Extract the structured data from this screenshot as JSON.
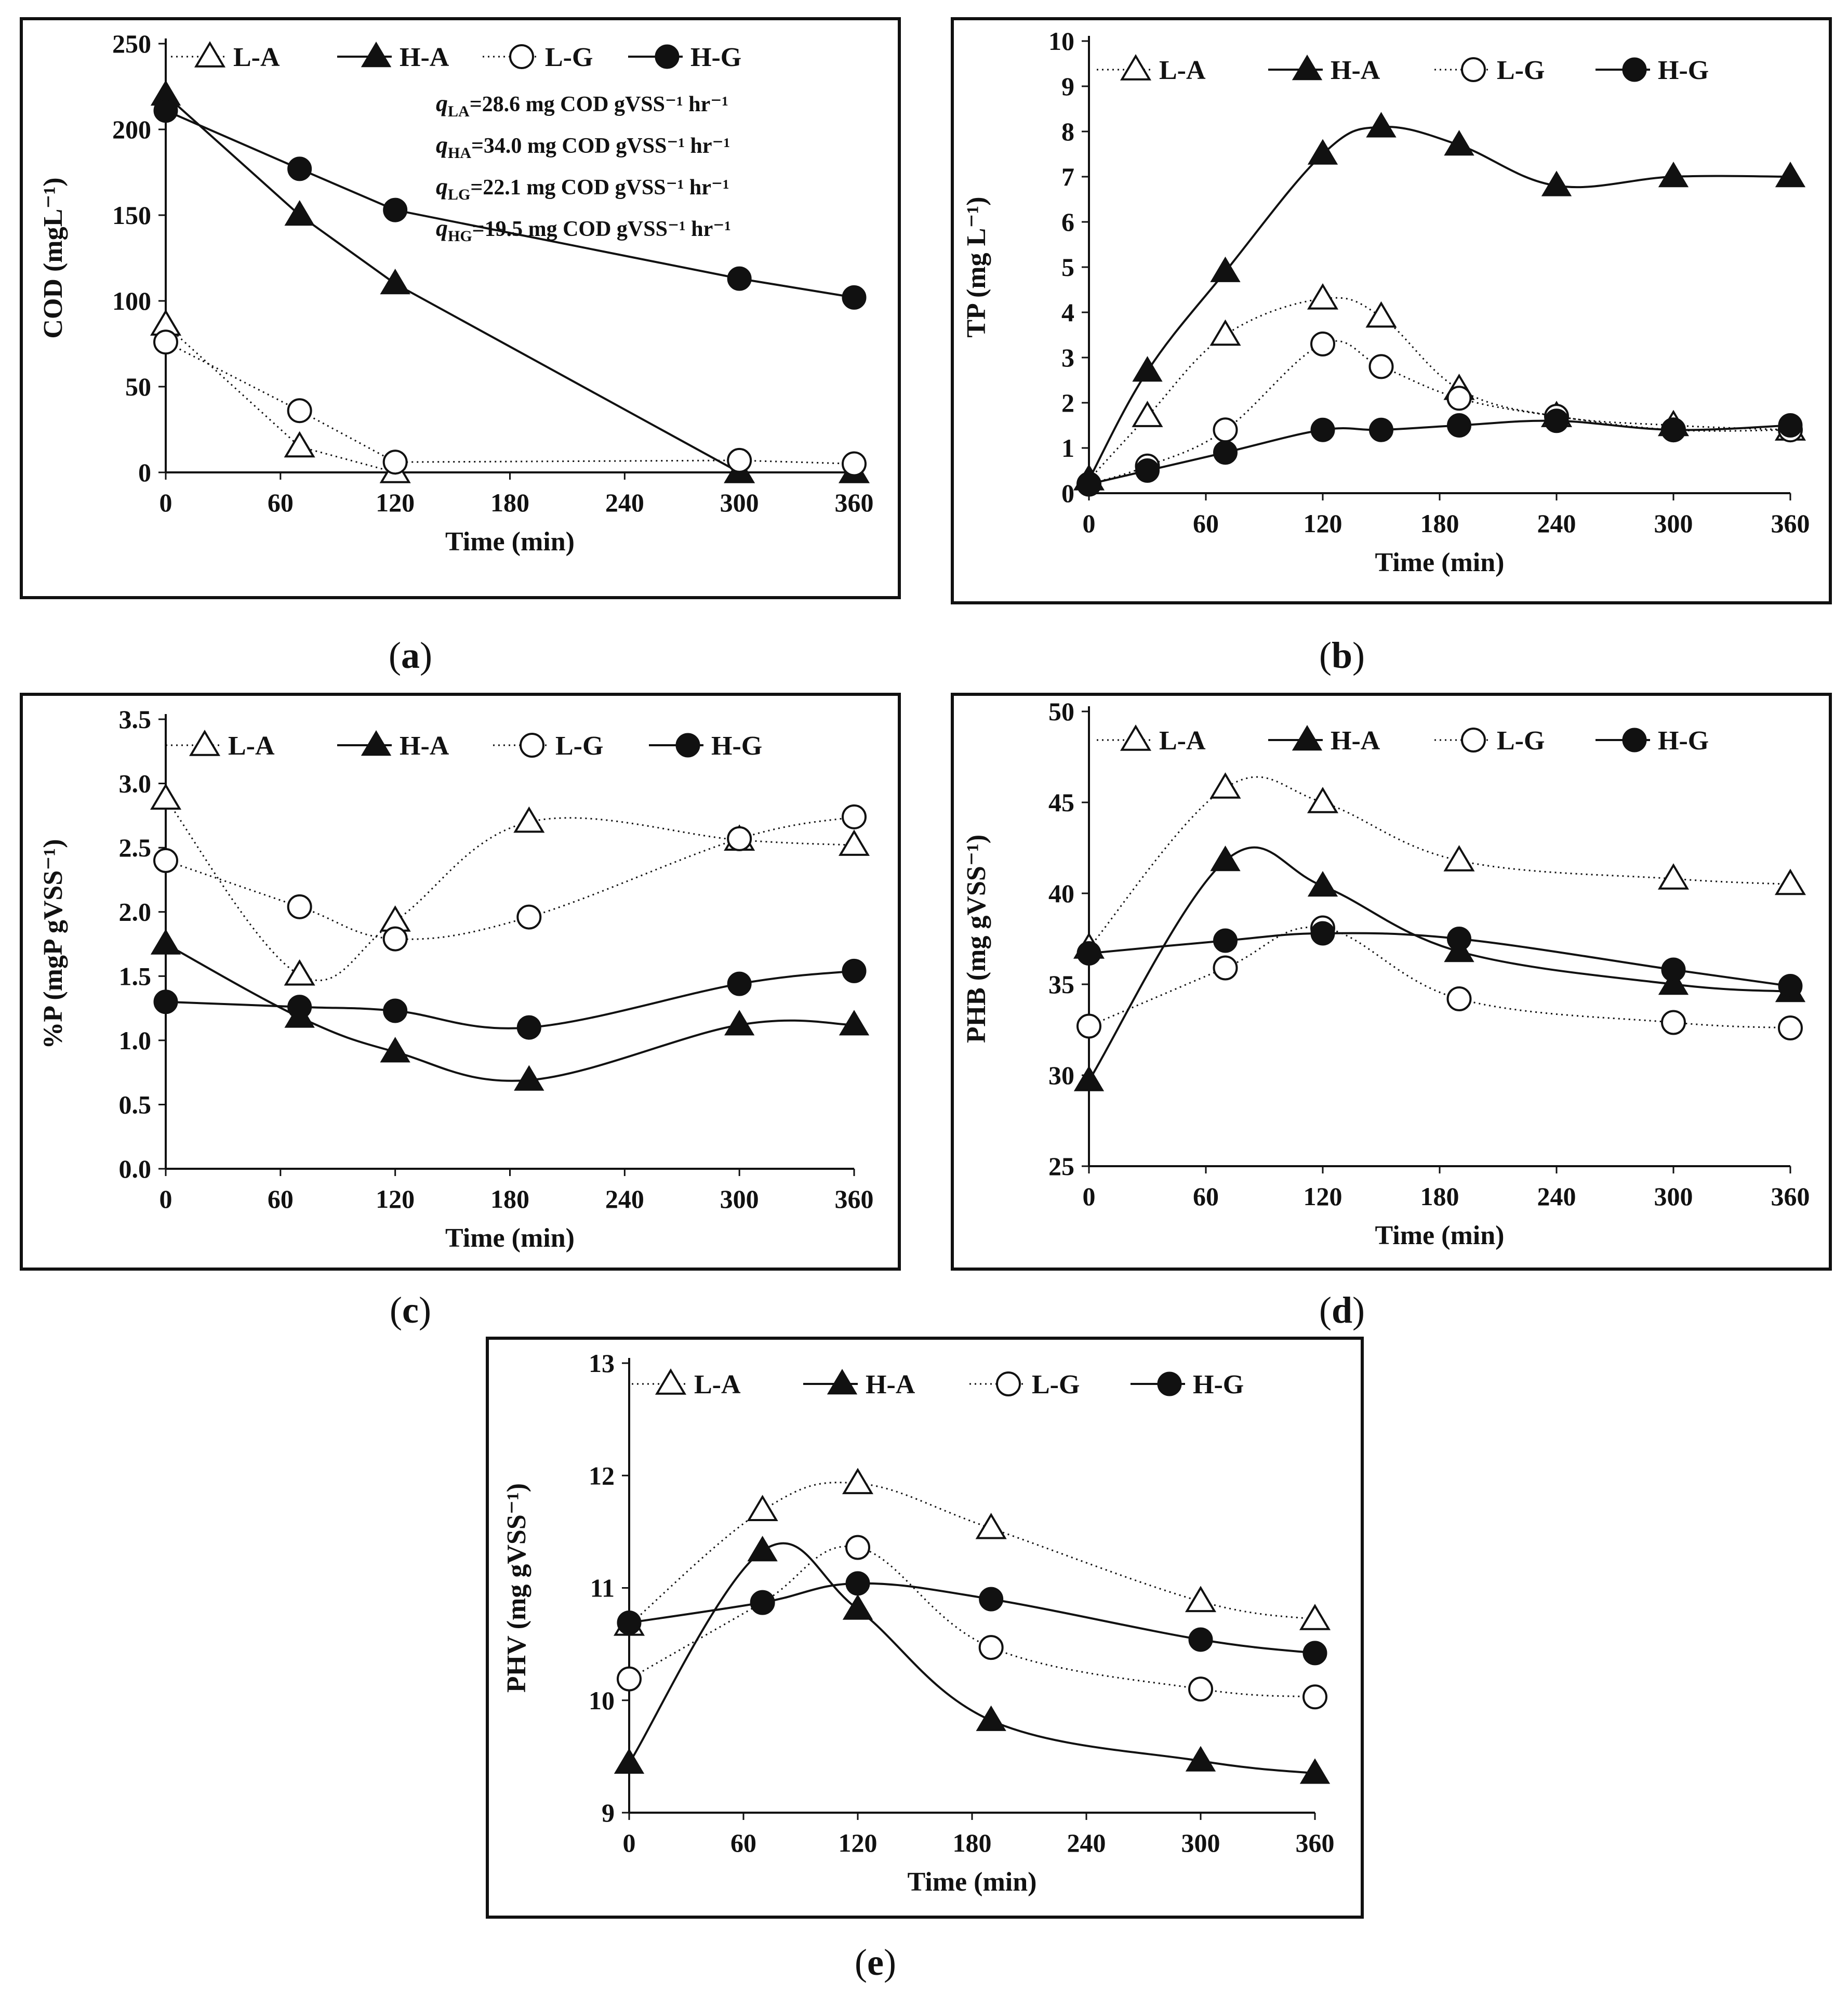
{
  "figure": {
    "captions": [
      "a",
      "b",
      "c",
      "d",
      "e"
    ]
  },
  "chart_data": [
    {
      "id": "a",
      "type": "line",
      "xlabel": "Time (min)",
      "ylabel": "COD (mgL⁻¹)",
      "ylim": [
        0,
        250
      ],
      "yticks": [
        "0",
        "50",
        "100",
        "150",
        "200",
        "250"
      ],
      "xticks": [
        "0",
        "60",
        "120",
        "180",
        "240",
        "300",
        "360"
      ],
      "xlim": [
        0,
        360
      ],
      "series": [
        {
          "name": "L-A",
          "marker": "triangle-open",
          "line": "dotted",
          "x": [
            0,
            70,
            120,
            300,
            360
          ],
          "y": [
            86,
            15,
            0,
            0,
            0
          ]
        },
        {
          "name": "H-A",
          "marker": "triangle-filled",
          "line": "solid",
          "x": [
            0,
            70,
            120,
            300,
            360
          ],
          "y": [
            220,
            150,
            110,
            0,
            0
          ]
        },
        {
          "name": "L-G",
          "marker": "circle-open",
          "line": "dotted",
          "x": [
            0,
            70,
            120,
            300,
            360
          ],
          "y": [
            76,
            36,
            6,
            7,
            5
          ]
        },
        {
          "name": "H-G",
          "marker": "circle-filled",
          "line": "solid",
          "x": [
            0,
            70,
            120,
            300,
            360
          ],
          "y": [
            211,
            177,
            153,
            113,
            102
          ]
        }
      ],
      "annotations": [
        {
          "q": "q",
          "sub": "LA",
          "text": "=28.6 mg COD gVSS⁻¹ hr⁻¹"
        },
        {
          "q": "q",
          "sub": "HA",
          "text": "=34.0 mg COD gVSS⁻¹ hr⁻¹"
        },
        {
          "q": "q",
          "sub": "LG",
          "text": "=22.1 mg COD gVSS⁻¹ hr⁻¹"
        },
        {
          "q": "q",
          "sub": "HG",
          "text": "=19.5 mg COD gVSS⁻¹ hr⁻¹"
        }
      ]
    },
    {
      "id": "b",
      "type": "line",
      "xlabel": "Time (min)",
      "ylabel": "TP (mg L⁻¹)",
      "ylim": [
        0,
        10
      ],
      "yticks": [
        "0",
        "1",
        "2",
        "3",
        "4",
        "5",
        "6",
        "7",
        "8",
        "9",
        "10"
      ],
      "xticks": [
        "0",
        "60",
        "120",
        "180",
        "240",
        "300",
        "360"
      ],
      "xlim": [
        0,
        360
      ],
      "series": [
        {
          "name": "L-A",
          "marker": "triangle-open",
          "line": "dotted",
          "x": [
            0,
            30,
            70,
            120,
            150,
            190,
            240,
            300,
            360
          ],
          "y": [
            0.3,
            1.7,
            3.5,
            4.3,
            3.9,
            2.3,
            1.7,
            1.5,
            1.4
          ]
        },
        {
          "name": "H-A",
          "marker": "triangle-filled",
          "line": "solid",
          "x": [
            0,
            30,
            70,
            120,
            150,
            190,
            240,
            300,
            360
          ],
          "y": [
            0.3,
            2.7,
            4.9,
            7.5,
            8.1,
            7.7,
            6.8,
            7.0,
            7.0
          ]
        },
        {
          "name": "L-G",
          "marker": "circle-open",
          "line": "dotted",
          "x": [
            0,
            30,
            70,
            120,
            150,
            190,
            240,
            300,
            360
          ],
          "y": [
            0.2,
            0.6,
            1.4,
            3.3,
            2.8,
            2.1,
            1.7,
            1.4,
            1.4
          ]
        },
        {
          "name": "H-G",
          "marker": "circle-filled",
          "line": "solid",
          "x": [
            0,
            30,
            70,
            120,
            150,
            190,
            240,
            300,
            360
          ],
          "y": [
            0.2,
            0.5,
            0.9,
            1.4,
            1.4,
            1.5,
            1.6,
            1.4,
            1.5
          ]
        }
      ]
    },
    {
      "id": "c",
      "type": "line",
      "xlabel": "Time (min)",
      "ylabel": "%P (mgP gVSS⁻¹)",
      "ylim": [
        0,
        3.5
      ],
      "yticks": [
        "0.0",
        "0.5",
        "1.0",
        "1.5",
        "2.0",
        "2.5",
        "3.0",
        "3.5"
      ],
      "xticks": [
        "0",
        "60",
        "120",
        "180",
        "240",
        "300",
        "360"
      ],
      "xlim": [
        0,
        360
      ],
      "series": [
        {
          "name": "L-A",
          "marker": "triangle-open",
          "line": "dotted",
          "x": [
            0,
            70,
            120,
            190,
            300,
            360
          ],
          "y": [
            2.88,
            1.51,
            1.93,
            2.7,
            2.56,
            2.52
          ]
        },
        {
          "name": "H-A",
          "marker": "triangle-filled",
          "line": "solid",
          "x": [
            0,
            70,
            120,
            190,
            300,
            360
          ],
          "y": [
            1.75,
            1.18,
            0.91,
            0.69,
            1.12,
            1.12
          ]
        },
        {
          "name": "L-G",
          "marker": "circle-open",
          "line": "dotted",
          "x": [
            0,
            70,
            120,
            190,
            300,
            360
          ],
          "y": [
            2.4,
            2.04,
            1.79,
            1.96,
            2.57,
            2.74
          ]
        },
        {
          "name": "H-G",
          "marker": "circle-filled",
          "line": "solid",
          "x": [
            0,
            70,
            120,
            190,
            300,
            360
          ],
          "y": [
            1.3,
            1.26,
            1.23,
            1.1,
            1.44,
            1.54
          ]
        }
      ]
    },
    {
      "id": "d",
      "type": "line",
      "xlabel": "Time (min)",
      "ylabel": "PHB (mg gVSS⁻¹)",
      "ylim": [
        25,
        50
      ],
      "yticks": [
        "25",
        "30",
        "35",
        "40",
        "45",
        "50"
      ],
      "xticks": [
        "0",
        "60",
        "120",
        "180",
        "240",
        "300",
        "360"
      ],
      "xlim": [
        0,
        360
      ],
      "series": [
        {
          "name": "L-A",
          "marker": "triangle-open",
          "line": "dotted",
          "x": [
            0,
            70,
            120,
            190,
            300,
            360
          ],
          "y": [
            37.0,
            45.8,
            45.0,
            41.8,
            40.8,
            40.5
          ]
        },
        {
          "name": "H-A",
          "marker": "triangle-filled",
          "line": "solid",
          "x": [
            0,
            70,
            120,
            190,
            300,
            360
          ],
          "y": [
            29.7,
            41.8,
            40.4,
            36.8,
            35.0,
            34.6
          ]
        },
        {
          "name": "L-G",
          "marker": "circle-open",
          "line": "dotted",
          "x": [
            0,
            70,
            120,
            190,
            300,
            360
          ],
          "y": [
            32.7,
            35.9,
            38.1,
            34.2,
            32.9,
            32.6
          ]
        },
        {
          "name": "H-G",
          "marker": "circle-filled",
          "line": "solid",
          "x": [
            0,
            70,
            120,
            190,
            300,
            360
          ],
          "y": [
            36.7,
            37.4,
            37.8,
            37.5,
            35.8,
            34.9
          ]
        }
      ]
    },
    {
      "id": "e",
      "type": "line",
      "xlabel": "Time (min)",
      "ylabel": "PHV (mg gVSS⁻¹)",
      "ylim": [
        9,
        13
      ],
      "yticks": [
        "9",
        "10",
        "11",
        "12",
        "13"
      ],
      "xticks": [
        "0",
        "60",
        "120",
        "180",
        "240",
        "300",
        "360"
      ],
      "xlim": [
        0,
        360
      ],
      "series": [
        {
          "name": "L-A",
          "marker": "triangle-open",
          "line": "dotted",
          "x": [
            0,
            70,
            120,
            190,
            300,
            360
          ],
          "y": [
            10.67,
            11.69,
            11.93,
            11.53,
            10.88,
            10.72
          ]
        },
        {
          "name": "H-A",
          "marker": "triangle-filled",
          "line": "solid",
          "x": [
            0,
            70,
            120,
            190,
            300,
            360
          ],
          "y": [
            9.44,
            11.33,
            10.81,
            9.82,
            9.46,
            9.35
          ]
        },
        {
          "name": "L-G",
          "marker": "circle-open",
          "line": "dotted",
          "x": [
            0,
            70,
            120,
            190,
            300,
            360
          ],
          "y": [
            10.19,
            10.87,
            11.36,
            10.47,
            10.1,
            10.03
          ]
        },
        {
          "name": "H-G",
          "marker": "circle-filled",
          "line": "solid",
          "x": [
            0,
            70,
            120,
            190,
            300,
            360
          ],
          "y": [
            10.69,
            10.87,
            11.04,
            10.9,
            10.54,
            10.42
          ]
        }
      ]
    }
  ]
}
